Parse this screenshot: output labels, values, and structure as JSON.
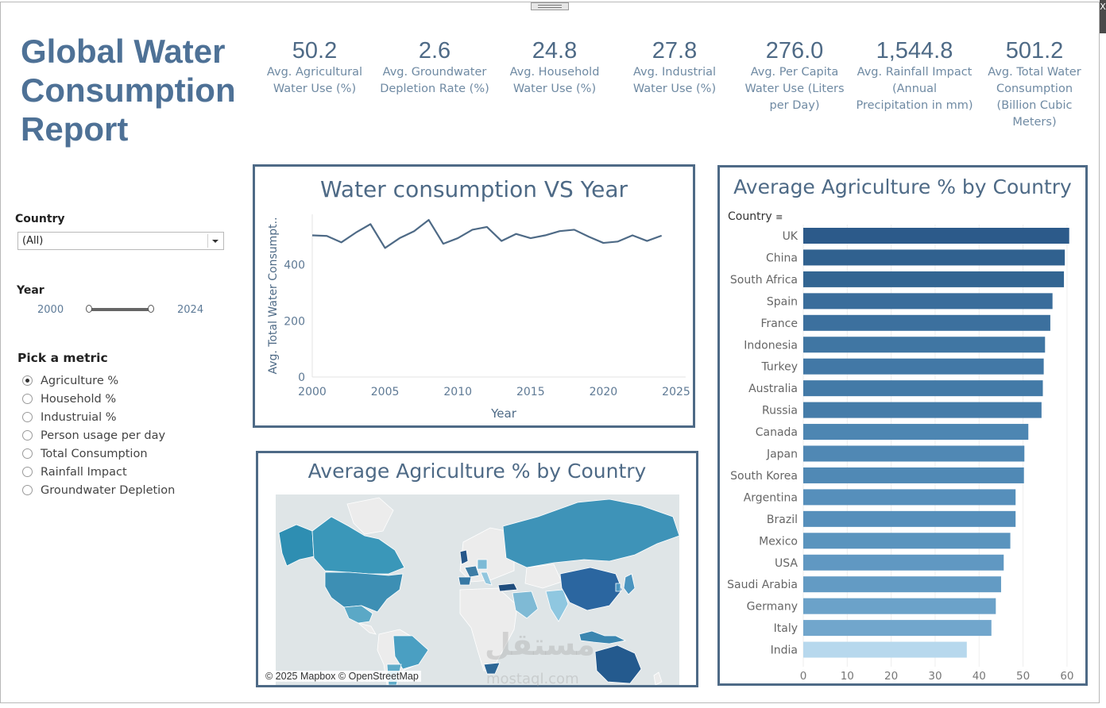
{
  "window": {
    "close_glyph": "X"
  },
  "header": {
    "title": "Global Water Consumption Report"
  },
  "kpis": [
    {
      "value": "50.2",
      "label": "Avg. Agricultural Water Use (%)"
    },
    {
      "value": "2.6",
      "label": "Avg. Groundwater Depletion Rate (%)"
    },
    {
      "value": "24.8",
      "label": "Avg. Household Water Use (%)"
    },
    {
      "value": "27.8",
      "label": "Avg. Industrial Water Use (%)"
    },
    {
      "value": "276.0",
      "label": "Avg. Per Capita Water Use (Liters per Day)"
    },
    {
      "value": "1,544.8",
      "label": "Avg. Rainfall Impact (Annual Precipitation in mm)"
    },
    {
      "value": "501.2",
      "label": "Avg. Total Water Consumption (Billion Cubic Meters)"
    }
  ],
  "filters": {
    "country_label": "Country",
    "country_value": "(All)",
    "year_label": "Year",
    "year_min": "2000",
    "year_max": "2024",
    "metric_label": "Pick a metric",
    "metrics": [
      {
        "label": "Agriculture %",
        "checked": true
      },
      {
        "label": "Household %",
        "checked": false
      },
      {
        "label": "Industruial %",
        "checked": false
      },
      {
        "label": "Person usage per day",
        "checked": false
      },
      {
        "label": "Total Consumption",
        "checked": false
      },
      {
        "label": "Rainfall Impact",
        "checked": false
      },
      {
        "label": "Groundwater Depletion",
        "checked": false
      }
    ]
  },
  "line_chart": {
    "title": "Water consumption VS Year",
    "chart_data": {
      "type": "line",
      "title": "Water consumption VS Year",
      "xlabel": "Year",
      "ylabel": "Avg. Total Water Consumpt..",
      "x": [
        2000,
        2001,
        2002,
        2003,
        2004,
        2005,
        2006,
        2007,
        2008,
        2009,
        2010,
        2011,
        2012,
        2013,
        2014,
        2015,
        2016,
        2017,
        2018,
        2019,
        2020,
        2021,
        2022,
        2023,
        2024
      ],
      "y": [
        505,
        503,
        480,
        515,
        545,
        460,
        495,
        520,
        560,
        475,
        495,
        525,
        535,
        485,
        510,
        495,
        505,
        520,
        525,
        500,
        478,
        483,
        505,
        485,
        504
      ],
      "xticks": [
        "2000",
        "2005",
        "2010",
        "2015",
        "2020",
        "2025"
      ],
      "yticks": [
        "0",
        "200",
        "400"
      ],
      "xlim": [
        2000,
        2025
      ],
      "ylim": [
        0,
        580
      ],
      "grid": false,
      "color": "#4e6a86"
    }
  },
  "map_panel": {
    "title": "Average Agriculture % by Country",
    "attribution": "© 2025 Mapbox © OpenStreetMap"
  },
  "bar_chart": {
    "title": "Average Agriculture % by Country",
    "row_header": "Country",
    "chart_data": {
      "type": "bar",
      "orientation": "horizontal",
      "title": "Average Agriculture % by Country",
      "categories": [
        "UK",
        "China",
        "South Africa",
        "Spain",
        "France",
        "Indonesia",
        "Turkey",
        "Australia",
        "Russia",
        "Canada",
        "Japan",
        "South Korea",
        "Argentina",
        "Brazil",
        "Mexico",
        "USA",
        "Saudi Arabia",
        "Germany",
        "Italy",
        "India"
      ],
      "values": [
        60.5,
        59.5,
        59.3,
        56.7,
        56.2,
        55.0,
        54.7,
        54.5,
        54.2,
        51.2,
        50.3,
        50.2,
        48.3,
        48.3,
        47.1,
        45.6,
        45.0,
        43.8,
        42.8,
        37.2
      ],
      "xticks": [
        "0",
        "10",
        "20",
        "30",
        "40",
        "50",
        "60"
      ],
      "xlim": [
        0,
        62
      ],
      "colors": [
        "#2c5a8a",
        "#30618f",
        "#326592",
        "#3a6d9b",
        "#3c709e",
        "#4076a3",
        "#4278a6",
        "#437aa7",
        "#457ca9",
        "#4d86b2",
        "#5088b4",
        "#5089b5",
        "#568fbb",
        "#568fbb",
        "#5a94be",
        "#6098c2",
        "#639bc4",
        "#6ba2c9",
        "#71a6cc",
        "#b7d8ed"
      ]
    }
  },
  "watermark": {
    "text": "مستقل",
    "sub": "mostaql.com"
  }
}
